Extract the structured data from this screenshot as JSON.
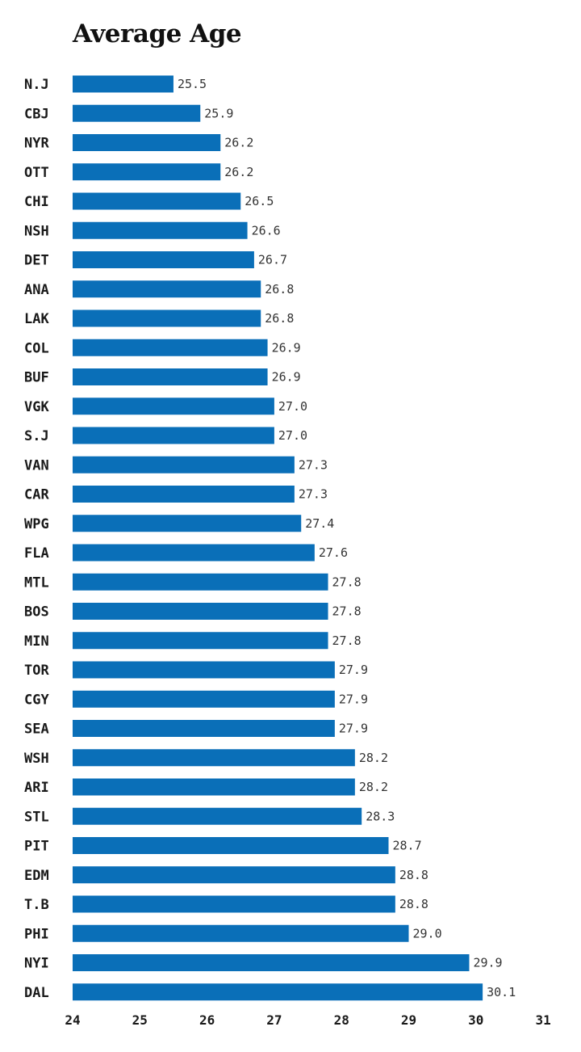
{
  "chart_data": {
    "type": "bar",
    "orientation": "horizontal",
    "title": "Average Age",
    "xlabel": "",
    "ylabel": "",
    "xlim": [
      24,
      31
    ],
    "x_ticks": [
      24,
      25,
      26,
      27,
      28,
      29,
      30,
      31
    ],
    "grid": false,
    "bar_color": "#0a6fb8",
    "categories": [
      "N.J",
      "CBJ",
      "NYR",
      "OTT",
      "CHI",
      "NSH",
      "DET",
      "ANA",
      "LAK",
      "COL",
      "BUF",
      "VGK",
      "S.J",
      "VAN",
      "CAR",
      "WPG",
      "FLA",
      "MTL",
      "BOS",
      "MIN",
      "TOR",
      "CGY",
      "SEA",
      "WSH",
      "ARI",
      "STL",
      "PIT",
      "EDM",
      "T.B",
      "PHI",
      "NYI",
      "DAL"
    ],
    "values": [
      25.5,
      25.9,
      26.2,
      26.2,
      26.5,
      26.6,
      26.7,
      26.8,
      26.8,
      26.9,
      26.9,
      27.0,
      27.0,
      27.3,
      27.3,
      27.4,
      27.6,
      27.8,
      27.8,
      27.8,
      27.9,
      27.9,
      27.9,
      28.2,
      28.2,
      28.3,
      28.7,
      28.8,
      28.8,
      29.0,
      29.9,
      30.1
    ],
    "value_labels": [
      "25.5",
      "25.9",
      "26.2",
      "26.2",
      "26.5",
      "26.6",
      "26.7",
      "26.8",
      "26.8",
      "26.9",
      "26.9",
      "27.0",
      "27.0",
      "27.3",
      "27.3",
      "27.4",
      "27.6",
      "27.8",
      "27.8",
      "27.8",
      "27.9",
      "27.9",
      "27.9",
      "28.2",
      "28.2",
      "28.3",
      "28.7",
      "28.8",
      "28.8",
      "29.0",
      "29.9",
      "30.1"
    ]
  }
}
